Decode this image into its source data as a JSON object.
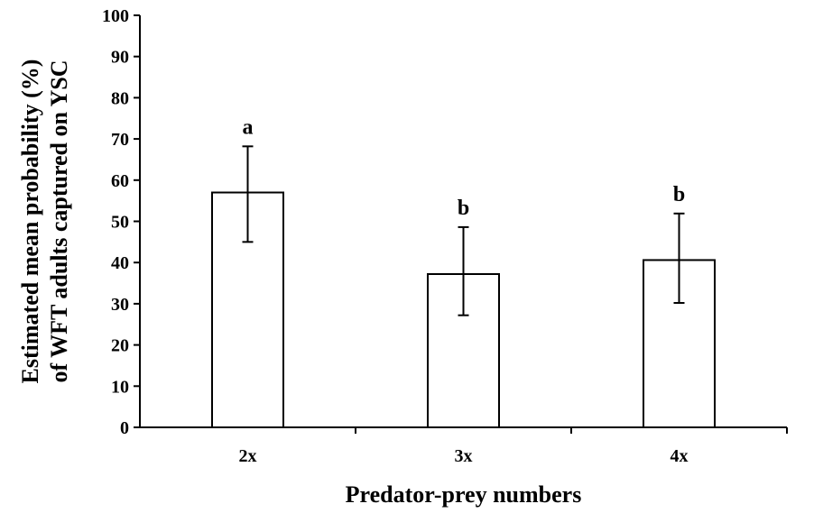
{
  "chart_data": {
    "type": "bar",
    "categories": [
      "2x",
      "3x",
      "4x"
    ],
    "values": [
      57,
      37.2,
      40.6
    ],
    "error_low": [
      45,
      27.2,
      30.2
    ],
    "error_high": [
      68.2,
      48.6,
      51.9
    ],
    "significance_letters": [
      "a",
      "b",
      "b"
    ],
    "title": "",
    "xlabel": "Predator-prey numbers",
    "ylabel_lines": [
      "Estimated mean probability (%)",
      "of WFT adults captured on YSC"
    ],
    "ylim": [
      0,
      100
    ],
    "yticks": [
      0,
      10,
      20,
      30,
      40,
      50,
      60,
      70,
      80,
      90,
      100
    ],
    "grid": false,
    "legend": "none",
    "colors": {
      "bar_fill": "#ffffff",
      "bar_stroke": "#000000",
      "axis": "#000000"
    }
  }
}
